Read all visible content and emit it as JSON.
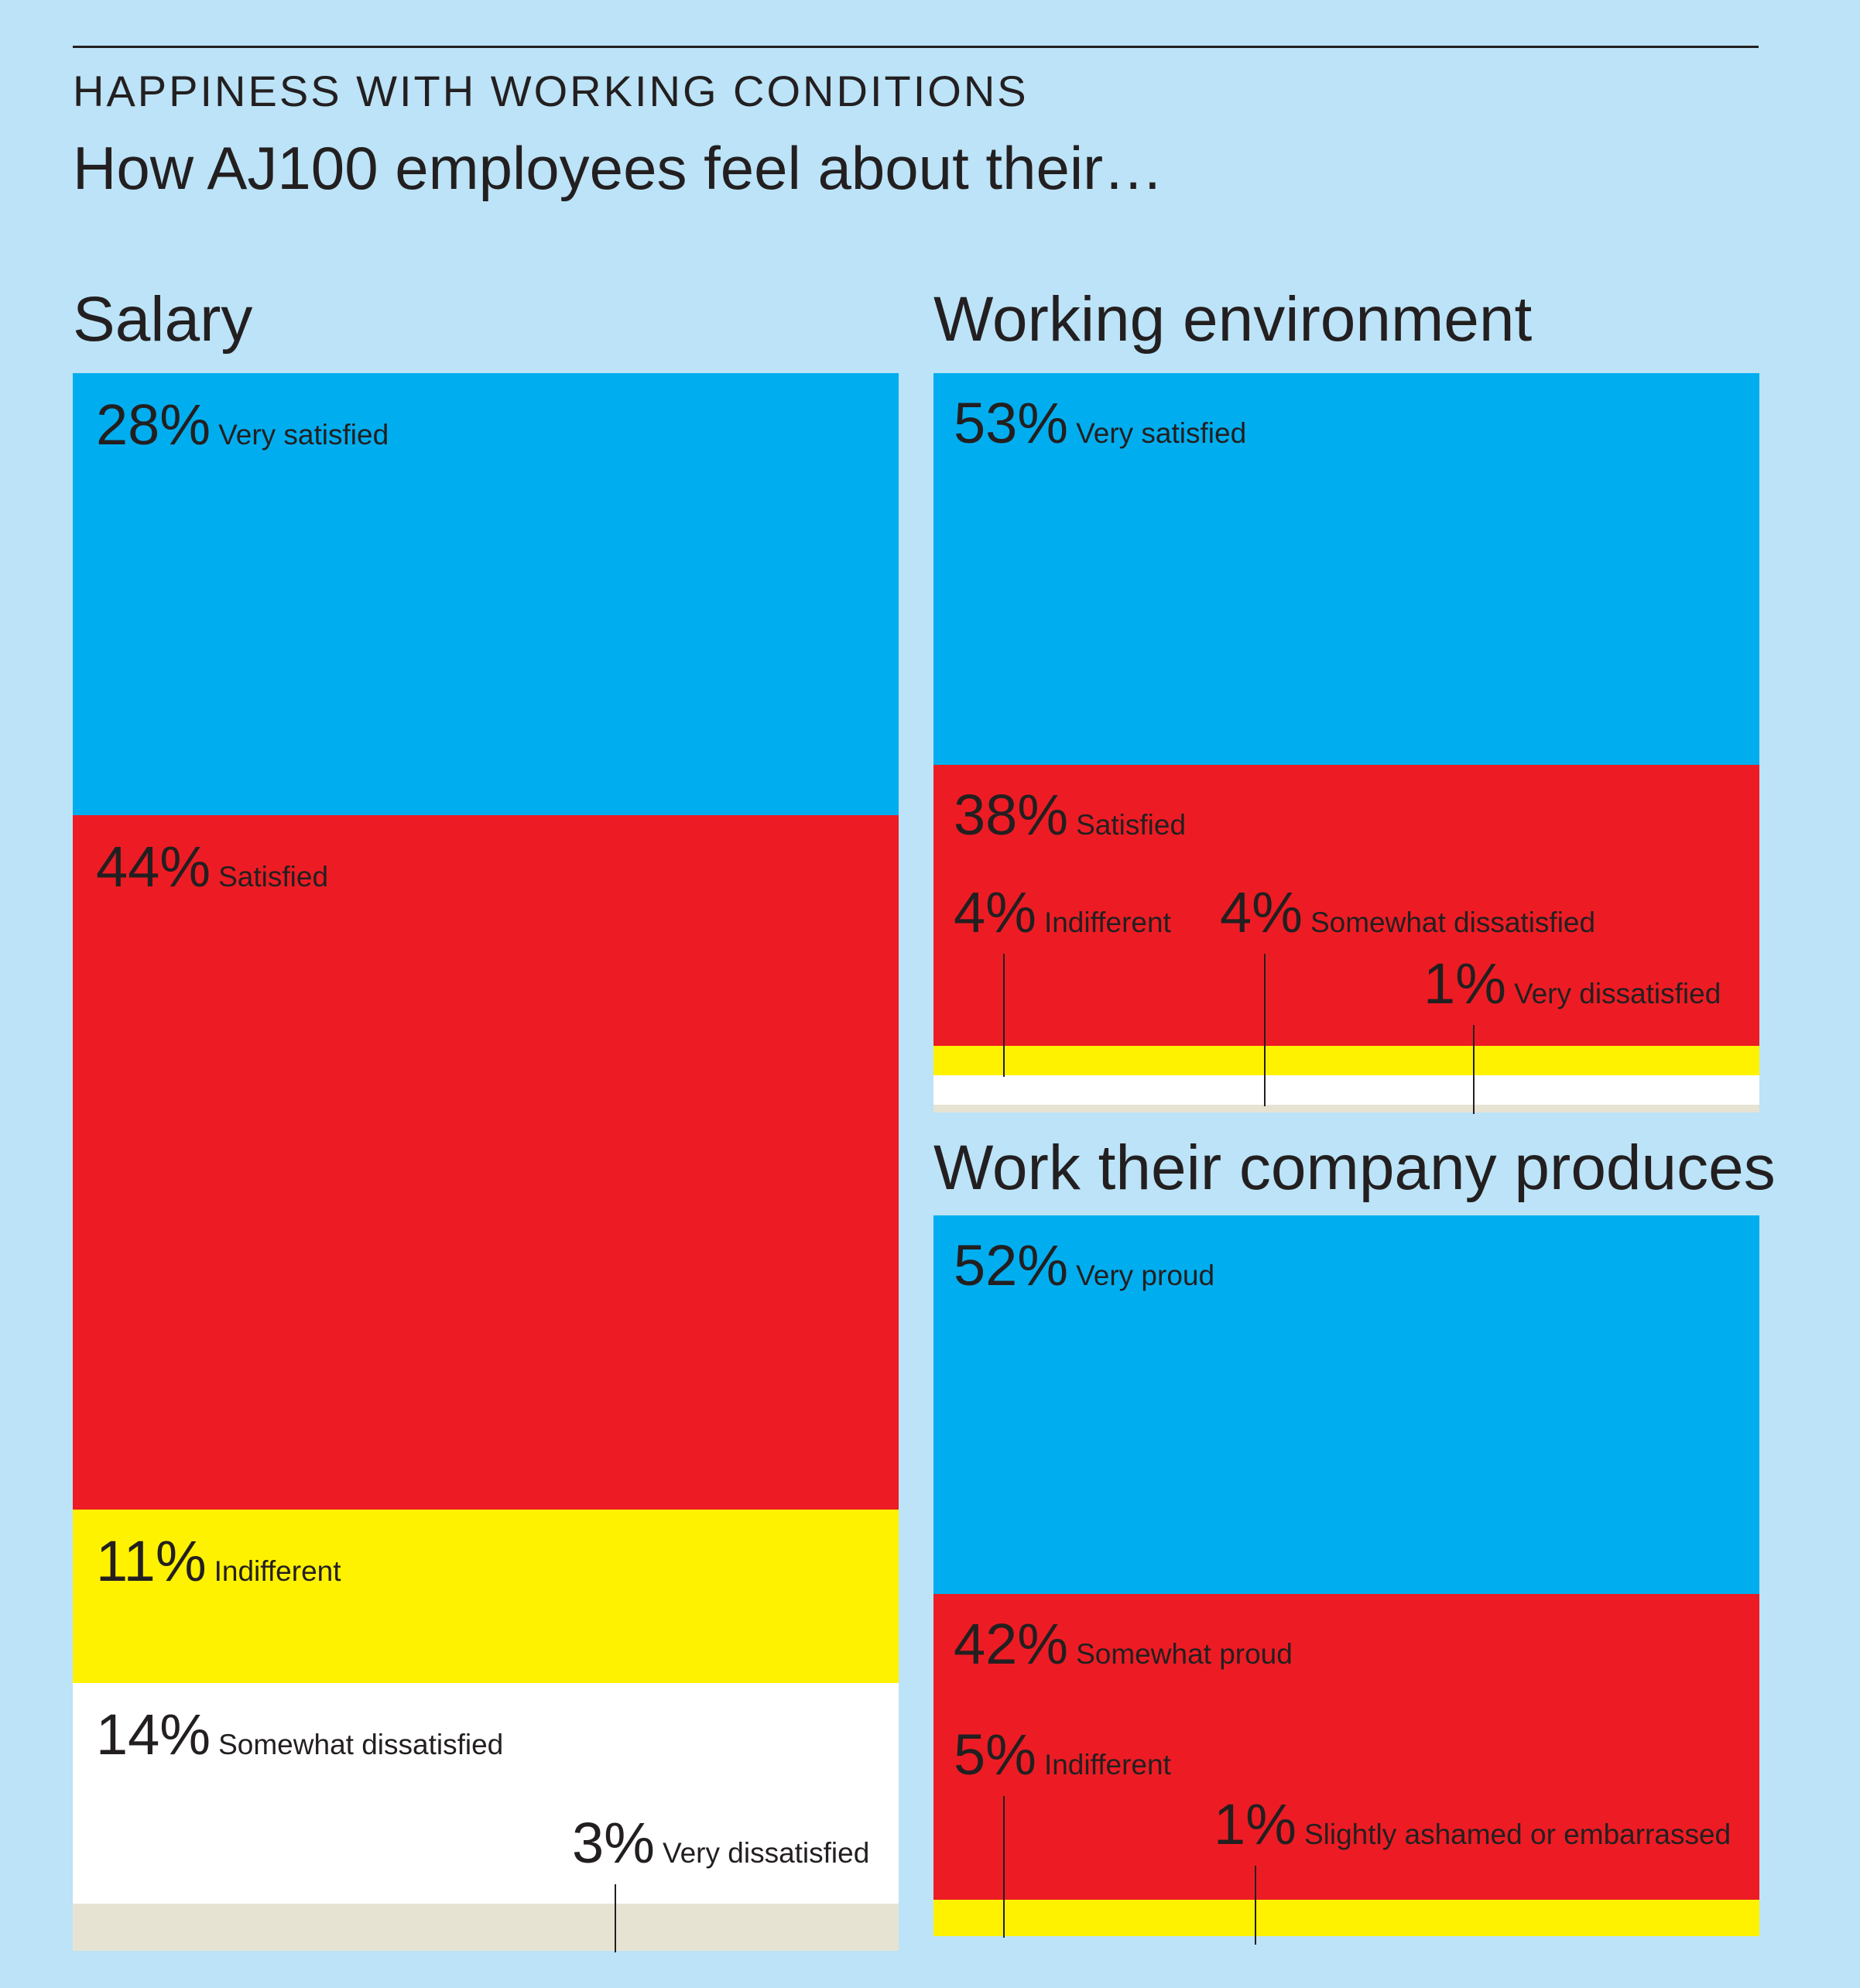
{
  "header": {
    "heading": "HAPPINESS WITH WORKING CONDITIONS",
    "subheading": "How AJ100 employees feel about their…"
  },
  "colors": {
    "background": "#bce3f7",
    "blue": "#00aeef",
    "red": "#ed1c24",
    "yellow": "#fff200",
    "white": "#ffffff",
    "beige": "#e6e3d3",
    "text": "#231f20"
  },
  "chart_data": [
    {
      "type": "bar",
      "title": "Salary",
      "categories": [
        "Very satisfied",
        "Satisfied",
        "Indifferent",
        "Somewhat dissatisfied",
        "Very dissatisfied"
      ],
      "values": [
        28,
        44,
        11,
        14,
        3
      ],
      "labels": [
        "28%",
        "44%",
        "11%",
        "14%",
        "3%"
      ],
      "colors": [
        "#00aeef",
        "#ed1c24",
        "#fff200",
        "#ffffff",
        "#e6e3d3"
      ]
    },
    {
      "type": "bar",
      "title": "Working environment",
      "categories": [
        "Very satisfied",
        "Satisfied",
        "Indifferent",
        "Somewhat dissatisfied",
        "Very dissatisfied"
      ],
      "values": [
        53,
        38,
        4,
        4,
        1
      ],
      "labels": [
        "53%",
        "38%",
        "4%",
        "4%",
        "1%"
      ],
      "colors": [
        "#00aeef",
        "#ed1c24",
        "#fff200",
        "#ffffff",
        "#e6e3d3"
      ]
    },
    {
      "type": "bar",
      "title": "Work their company produces",
      "categories": [
        "Very proud",
        "Somewhat proud",
        "Indifferent",
        "Slightly ashamed or embarrassed"
      ],
      "values": [
        52,
        42,
        5,
        1
      ],
      "labels": [
        "52%",
        "42%",
        "5%",
        "1%"
      ],
      "colors": [
        "#00aeef",
        "#ed1c24",
        "#fff200",
        "#bce3f7"
      ]
    }
  ]
}
